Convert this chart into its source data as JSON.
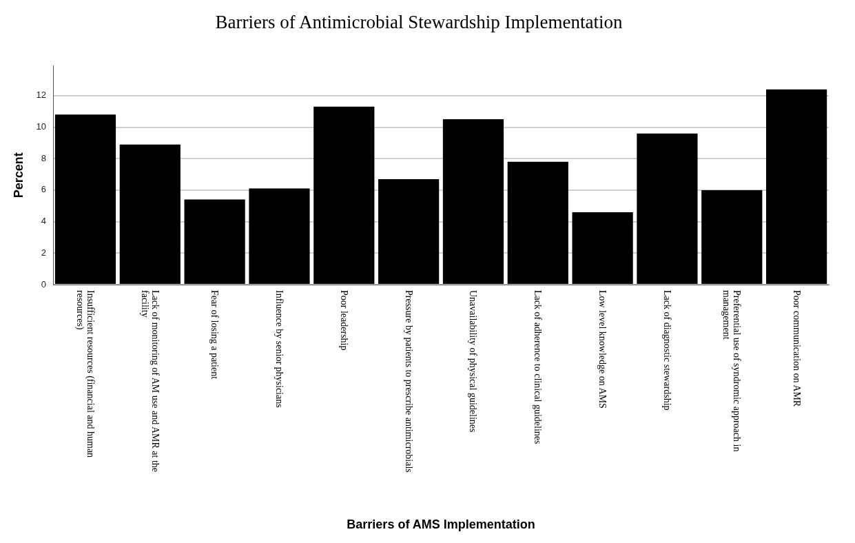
{
  "chart_data": {
    "type": "bar",
    "title": "Barriers of Antimicrobial Stewardship Implementation",
    "xlabel": "Barriers of AMS Implementation",
    "ylabel": "Percent",
    "categories": [
      "Insufficient resources (financial and human resources)",
      "Lack of monitoring of AM use and AMR at the facility",
      "Fear of losing a patient",
      "Influence by senior physicians",
      "Poor leadership",
      "Pressure by patients to prescribe antimicrobials",
      "Unavailability of physical guidelines",
      "Lack of adherence to clinical guidelines",
      "Low level knowledge on AMS",
      "Lack of diagnostic stewardship",
      "Preferential use of syndromic approach in management",
      "Poor communication on AMR"
    ],
    "values": [
      10.8,
      8.9,
      5.4,
      6.1,
      11.3,
      6.7,
      10.5,
      7.8,
      4.6,
      9.6,
      6.0,
      12.4
    ],
    "color": "#000000",
    "ylim": [
      0,
      13.9
    ],
    "yticks": [
      0,
      2,
      4,
      6,
      8,
      10,
      12
    ],
    "grid": "y",
    "legend": false
  }
}
